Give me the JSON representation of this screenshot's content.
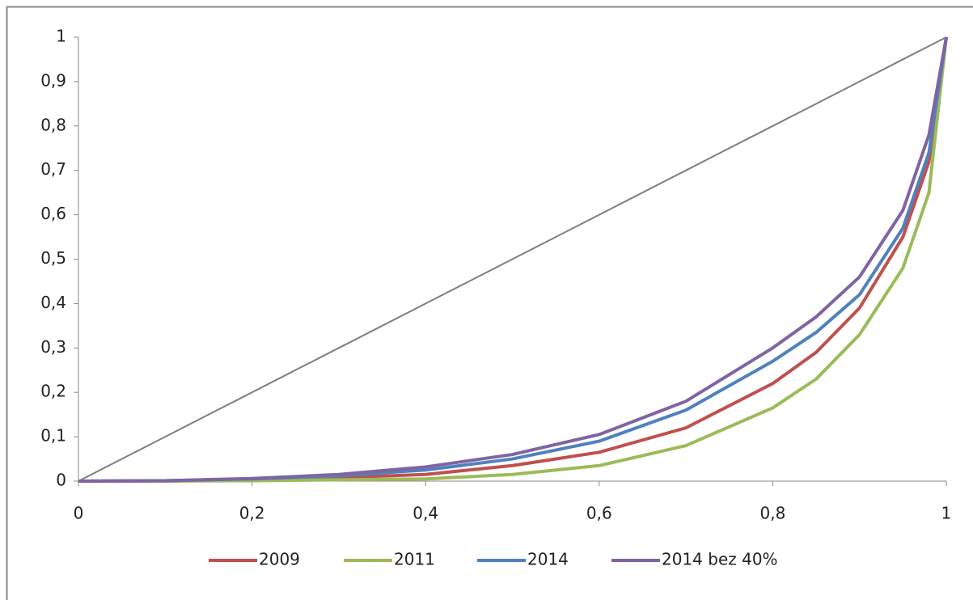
{
  "chart_data": {
    "type": "line",
    "x": [
      0,
      0.1,
      0.2,
      0.3,
      0.4,
      0.5,
      0.6,
      0.7,
      0.8,
      0.85,
      0.9,
      0.95,
      0.98,
      1
    ],
    "series": [
      {
        "color": "#7f7f7f",
        "values": [
          0,
          0.1,
          0.2,
          0.3,
          0.4,
          0.5,
          0.6,
          0.7,
          0.8,
          0.85,
          0.9,
          0.95,
          0.98,
          1
        ]
      },
      {
        "name": "2009",
        "color": "#c0504d",
        "values": [
          0,
          0.001,
          0.003,
          0.008,
          0.015,
          0.035,
          0.065,
          0.12,
          0.22,
          0.29,
          0.39,
          0.55,
          0.72,
          1
        ]
      },
      {
        "name": "2011",
        "color": "#9bbb59",
        "values": [
          0,
          0.0,
          0.001,
          0.003,
          0.005,
          0.015,
          0.035,
          0.08,
          0.165,
          0.23,
          0.33,
          0.48,
          0.65,
          1
        ]
      },
      {
        "name": "2014",
        "color": "#4f81bd",
        "values": [
          0,
          0.001,
          0.005,
          0.012,
          0.025,
          0.05,
          0.09,
          0.16,
          0.27,
          0.335,
          0.42,
          0.57,
          0.74,
          1
        ]
      },
      {
        "name": "2014 bez 40%",
        "color": "#8064a2",
        "values": [
          0,
          0.001,
          0.006,
          0.015,
          0.032,
          0.06,
          0.105,
          0.18,
          0.3,
          0.37,
          0.46,
          0.61,
          0.78,
          1
        ]
      }
    ],
    "xlim": [
      0,
      1
    ],
    "xticks": [
      0,
      {
        "value": 0.2,
        "label": "0,2"
      },
      {
        "value": 0.4,
        "label": "0,4"
      },
      {
        "value": 0.6,
        "label": "0,6"
      },
      {
        "value": 0.8,
        "label": "0,8"
      },
      1
    ],
    "ylim": [
      0,
      1
    ],
    "yticks": [
      0,
      {
        "value": 0.1,
        "label": "0,1"
      },
      {
        "value": 0.2,
        "label": "0,2"
      },
      {
        "value": 0.3,
        "label": "0,3"
      },
      {
        "value": 0.4,
        "label": "0,4"
      },
      {
        "value": 0.5,
        "label": "0,5"
      },
      {
        "value": 0.6,
        "label": "0,6"
      },
      {
        "value": 0.7,
        "label": "0,7"
      },
      {
        "value": 0.8,
        "label": "0,8"
      },
      {
        "value": 0.9,
        "label": "0,9"
      },
      1
    ],
    "legend": "bottom"
  }
}
